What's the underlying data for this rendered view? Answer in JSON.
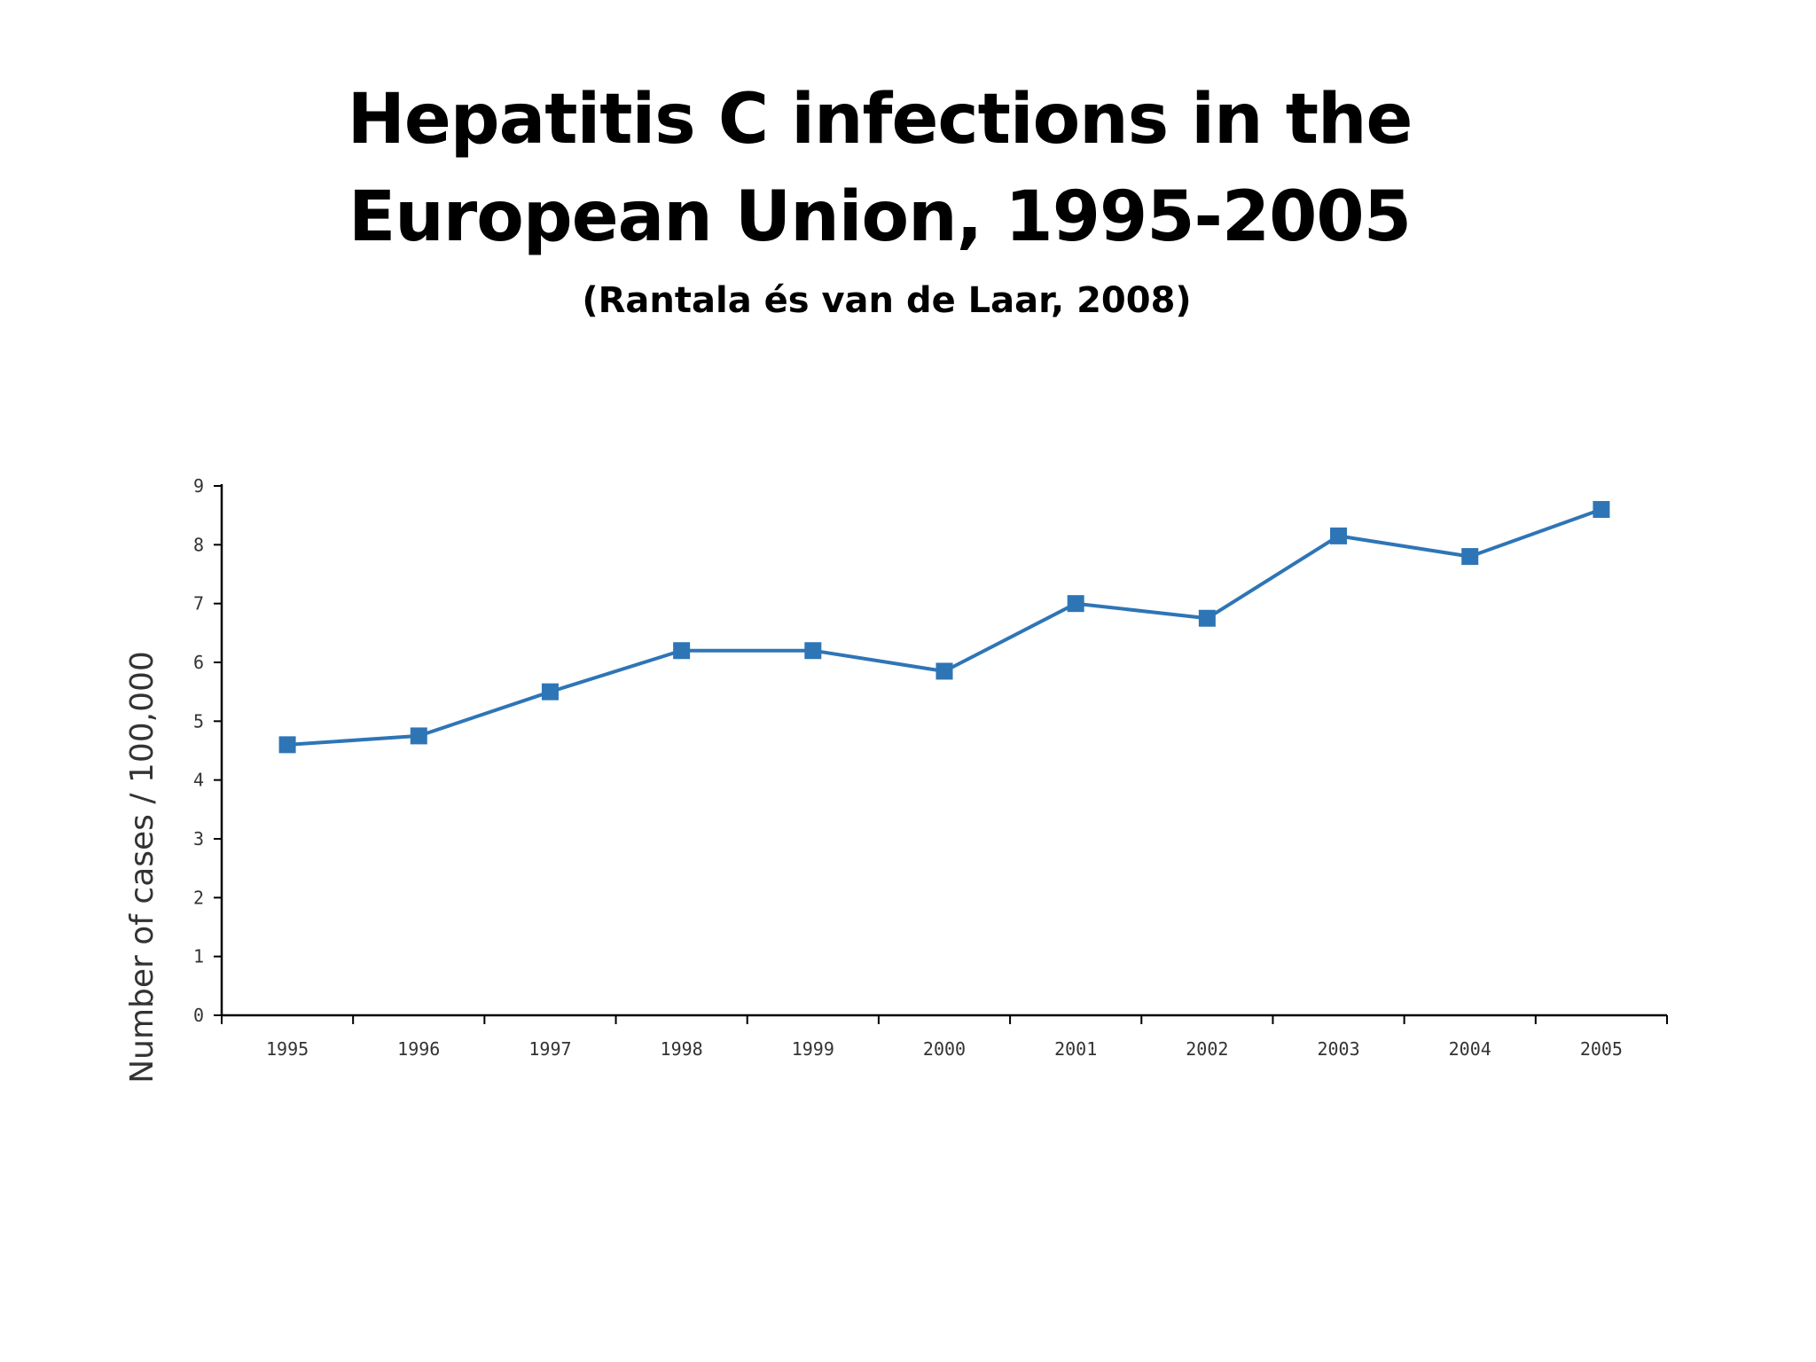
{
  "slide": {
    "title_line1": "Hepatitis C infections in the",
    "title_line2": "European Union, 1995-2005",
    "subtitle": "(Rantala és van de Laar, 2008)"
  },
  "colors": {
    "series": "#2e75b6",
    "axis": "#000000",
    "text": "#333333"
  },
  "chart_data": {
    "type": "line",
    "title": "Hepatitis C infections in the European Union, 1995-2005",
    "xlabel": "",
    "ylabel": "Number of cases / 100,000",
    "categories": [
      "1995",
      "1996",
      "1997",
      "1998",
      "1999",
      "2000",
      "2001",
      "2002",
      "2003",
      "2004",
      "2005"
    ],
    "values": [
      4.6,
      4.75,
      5.5,
      6.2,
      6.2,
      5.85,
      7.0,
      6.75,
      8.15,
      7.8,
      8.6
    ],
    "ylim": [
      0,
      9
    ],
    "yticks": [
      "0",
      "1",
      "2",
      "3",
      "4",
      "5",
      "6",
      "7",
      "8",
      "9"
    ],
    "marker": "square",
    "grid": false,
    "legend": "none"
  }
}
